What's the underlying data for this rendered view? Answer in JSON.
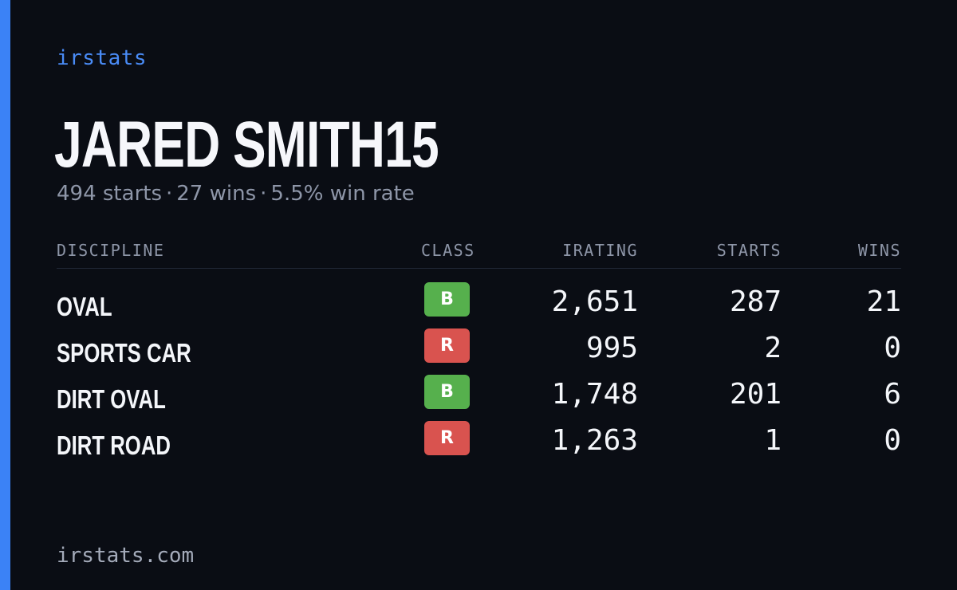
{
  "colors": {
    "accent": "#3b82f6",
    "background": "#0a0d14",
    "class_b": "#56b04d",
    "class_r": "#d9534f"
  },
  "brand": "irstats",
  "player": {
    "name": "JARED SMITH15",
    "starts": "494 starts",
    "wins": "27 wins",
    "win_rate": "5.5% win rate",
    "separator": "·"
  },
  "table": {
    "headers": {
      "discipline": "DISCIPLINE",
      "class": "CLASS",
      "irating": "IRATING",
      "starts": "STARTS",
      "wins": "WINS"
    },
    "rows": [
      {
        "discipline": "OVAL",
        "class": "B",
        "irating": "2,651",
        "starts": "287",
        "wins": "21"
      },
      {
        "discipline": "SPORTS CAR",
        "class": "R",
        "irating": "995",
        "starts": "2",
        "wins": "0"
      },
      {
        "discipline": "DIRT OVAL",
        "class": "B",
        "irating": "1,748",
        "starts": "201",
        "wins": "6"
      },
      {
        "discipline": "DIRT ROAD",
        "class": "R",
        "irating": "1,263",
        "starts": "1",
        "wins": "0"
      }
    ]
  },
  "footer": "irstats.com"
}
